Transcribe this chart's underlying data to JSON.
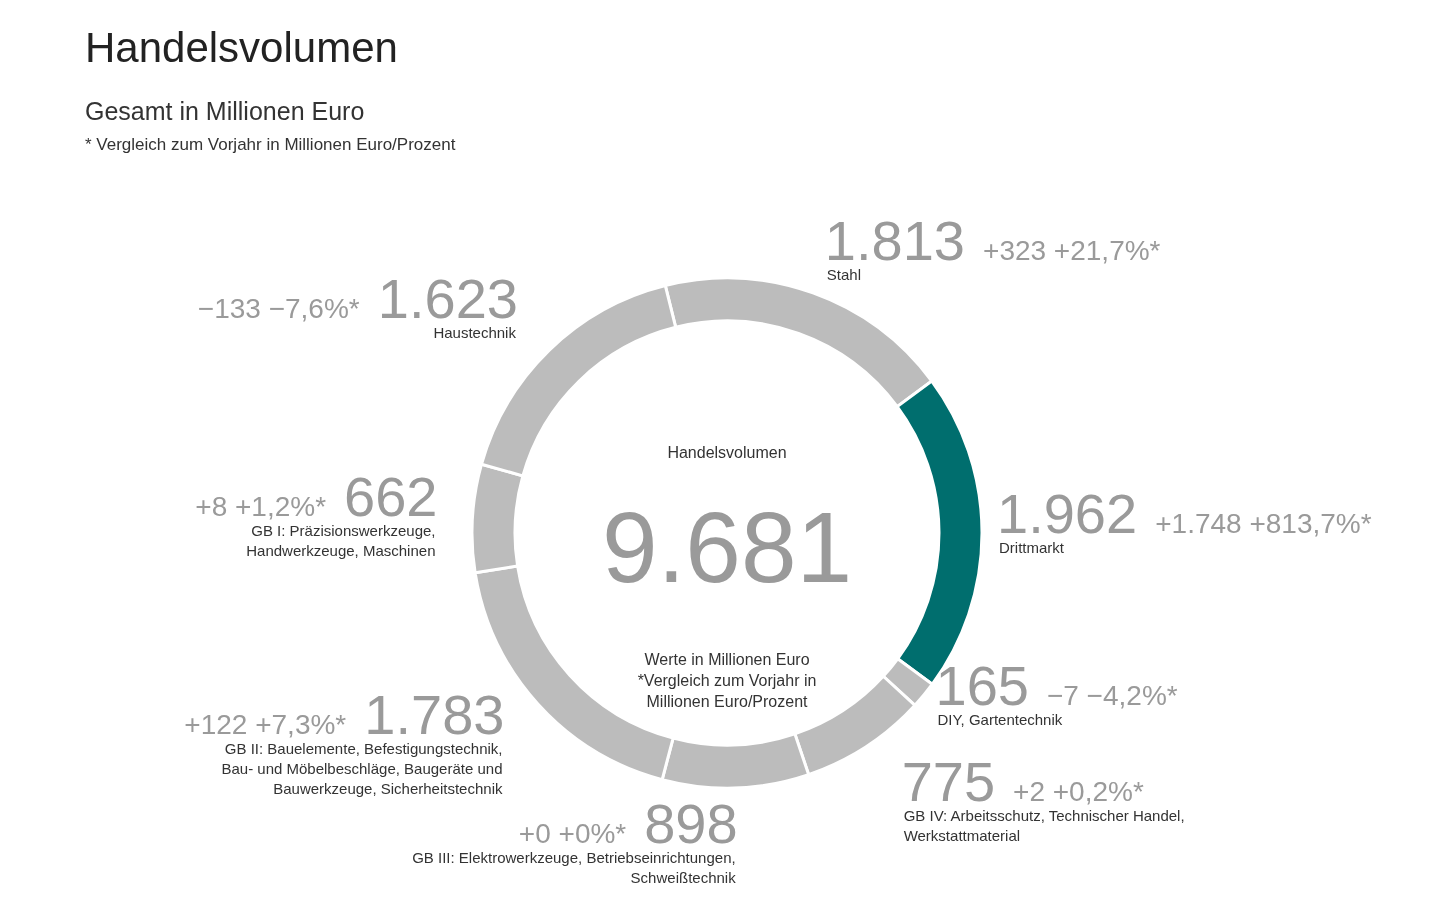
{
  "chart_data": {
    "type": "donut",
    "title": "Handelsvolumen",
    "subtitle": "Gesamt in Millionen Euro",
    "categories": [
      "Stahl",
      "Drittmarkt",
      "DIY, Gartentechnik",
      "GB IV: Arbeitsschutz, Technischer Handel,\nWerkstattmaterial",
      "GB III: Elektrowerkzeuge, Betriebseinrichtungen,\nSchweißtechnik",
      "GB II: Bauelemente, Befestigungstechnik,\nBau- und Möbelbeschläge, Baugeräte und\nBauwerkzeuge, Sicherheitstechnik",
      "GB I: Präzisionswerkzeuge,\nHandwerkzeuge, Maschinen",
      "Haustechnik"
    ],
    "values": [
      1813,
      1962,
      165,
      775,
      898,
      1783,
      662,
      1623
    ],
    "value_labels": [
      "1.813",
      "1.962",
      "165",
      "775",
      "898",
      "1.783",
      "662",
      "1.623"
    ],
    "colors": [
      "#bcbcbc",
      "#006e6e",
      "#bcbcbc",
      "#bcbcbc",
      "#bcbcbc",
      "#bcbcbc",
      "#bcbcbc",
      "#bcbcbc"
    ],
    "annotations": [
      "* Vergleich zum Vorjahr in Millionen Euro/Prozent",
      "Handelsvolumen",
      "9.681",
      "Werte in Millionen Euro\n*Vergleich zum Vorjahr in\nMillionen Euro/Prozent",
      "+323  +21,7%*",
      "+1.748  +813,7%*",
      "−7  −4,2%*",
      "+2  +0,2%*",
      "+0  +0%*",
      "+122  +7,3%*",
      "+8  +1,2%*",
      "−133  −7,6%*"
    ]
  }
}
